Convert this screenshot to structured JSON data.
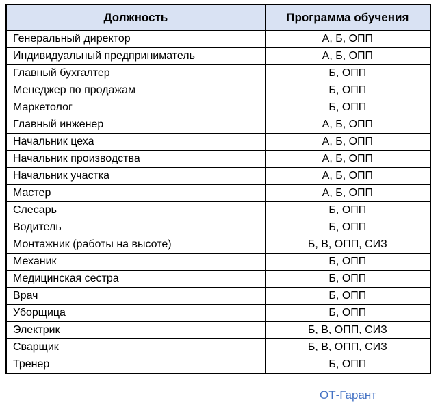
{
  "table": {
    "headers": [
      "Должность",
      "Программа обучения"
    ],
    "rows": [
      {
        "position": "Генеральный директор",
        "program": "А, Б, ОПП"
      },
      {
        "position": "Индивидуальный предприниматель",
        "program": "А, Б, ОПП"
      },
      {
        "position": "Главный бухгалтер",
        "program": "Б, ОПП"
      },
      {
        "position": "Менеджер по продажам",
        "program": "Б, ОПП"
      },
      {
        "position": "Маркетолог",
        "program": "Б, ОПП"
      },
      {
        "position": "Главный инженер",
        "program": "А, Б, ОПП"
      },
      {
        "position": "Начальник цеха",
        "program": "А, Б, ОПП"
      },
      {
        "position": "Начальник производства",
        "program": "А, Б, ОПП"
      },
      {
        "position": "Начальник участка",
        "program": "А, Б, ОПП"
      },
      {
        "position": "Мастер",
        "program": "А, Б, ОПП"
      },
      {
        "position": "Слесарь",
        "program": "Б, ОПП"
      },
      {
        "position": "Водитель",
        "program": "Б, ОПП"
      },
      {
        "position": "Монтажник (работы на высоте)",
        "program": "Б, В, ОПП, СИЗ"
      },
      {
        "position": "Механик",
        "program": "Б, ОПП"
      },
      {
        "position": "Медицинская сестра",
        "program": "Б, ОПП"
      },
      {
        "position": "Врач",
        "program": "Б, ОПП"
      },
      {
        "position": "Уборщица",
        "program": "Б, ОПП"
      },
      {
        "position": "Электрик",
        "program": "Б, В, ОПП, СИЗ"
      },
      {
        "position": "Сварщик",
        "program": "Б, В, ОПП, СИЗ"
      },
      {
        "position": "Тренер",
        "program": "Б, ОПП"
      }
    ]
  },
  "footer": {
    "brand": "ОТ-Гарант"
  },
  "colors": {
    "header_bg": "#d9e2f3",
    "border": "#000000",
    "brand_link": "#4472c4"
  }
}
